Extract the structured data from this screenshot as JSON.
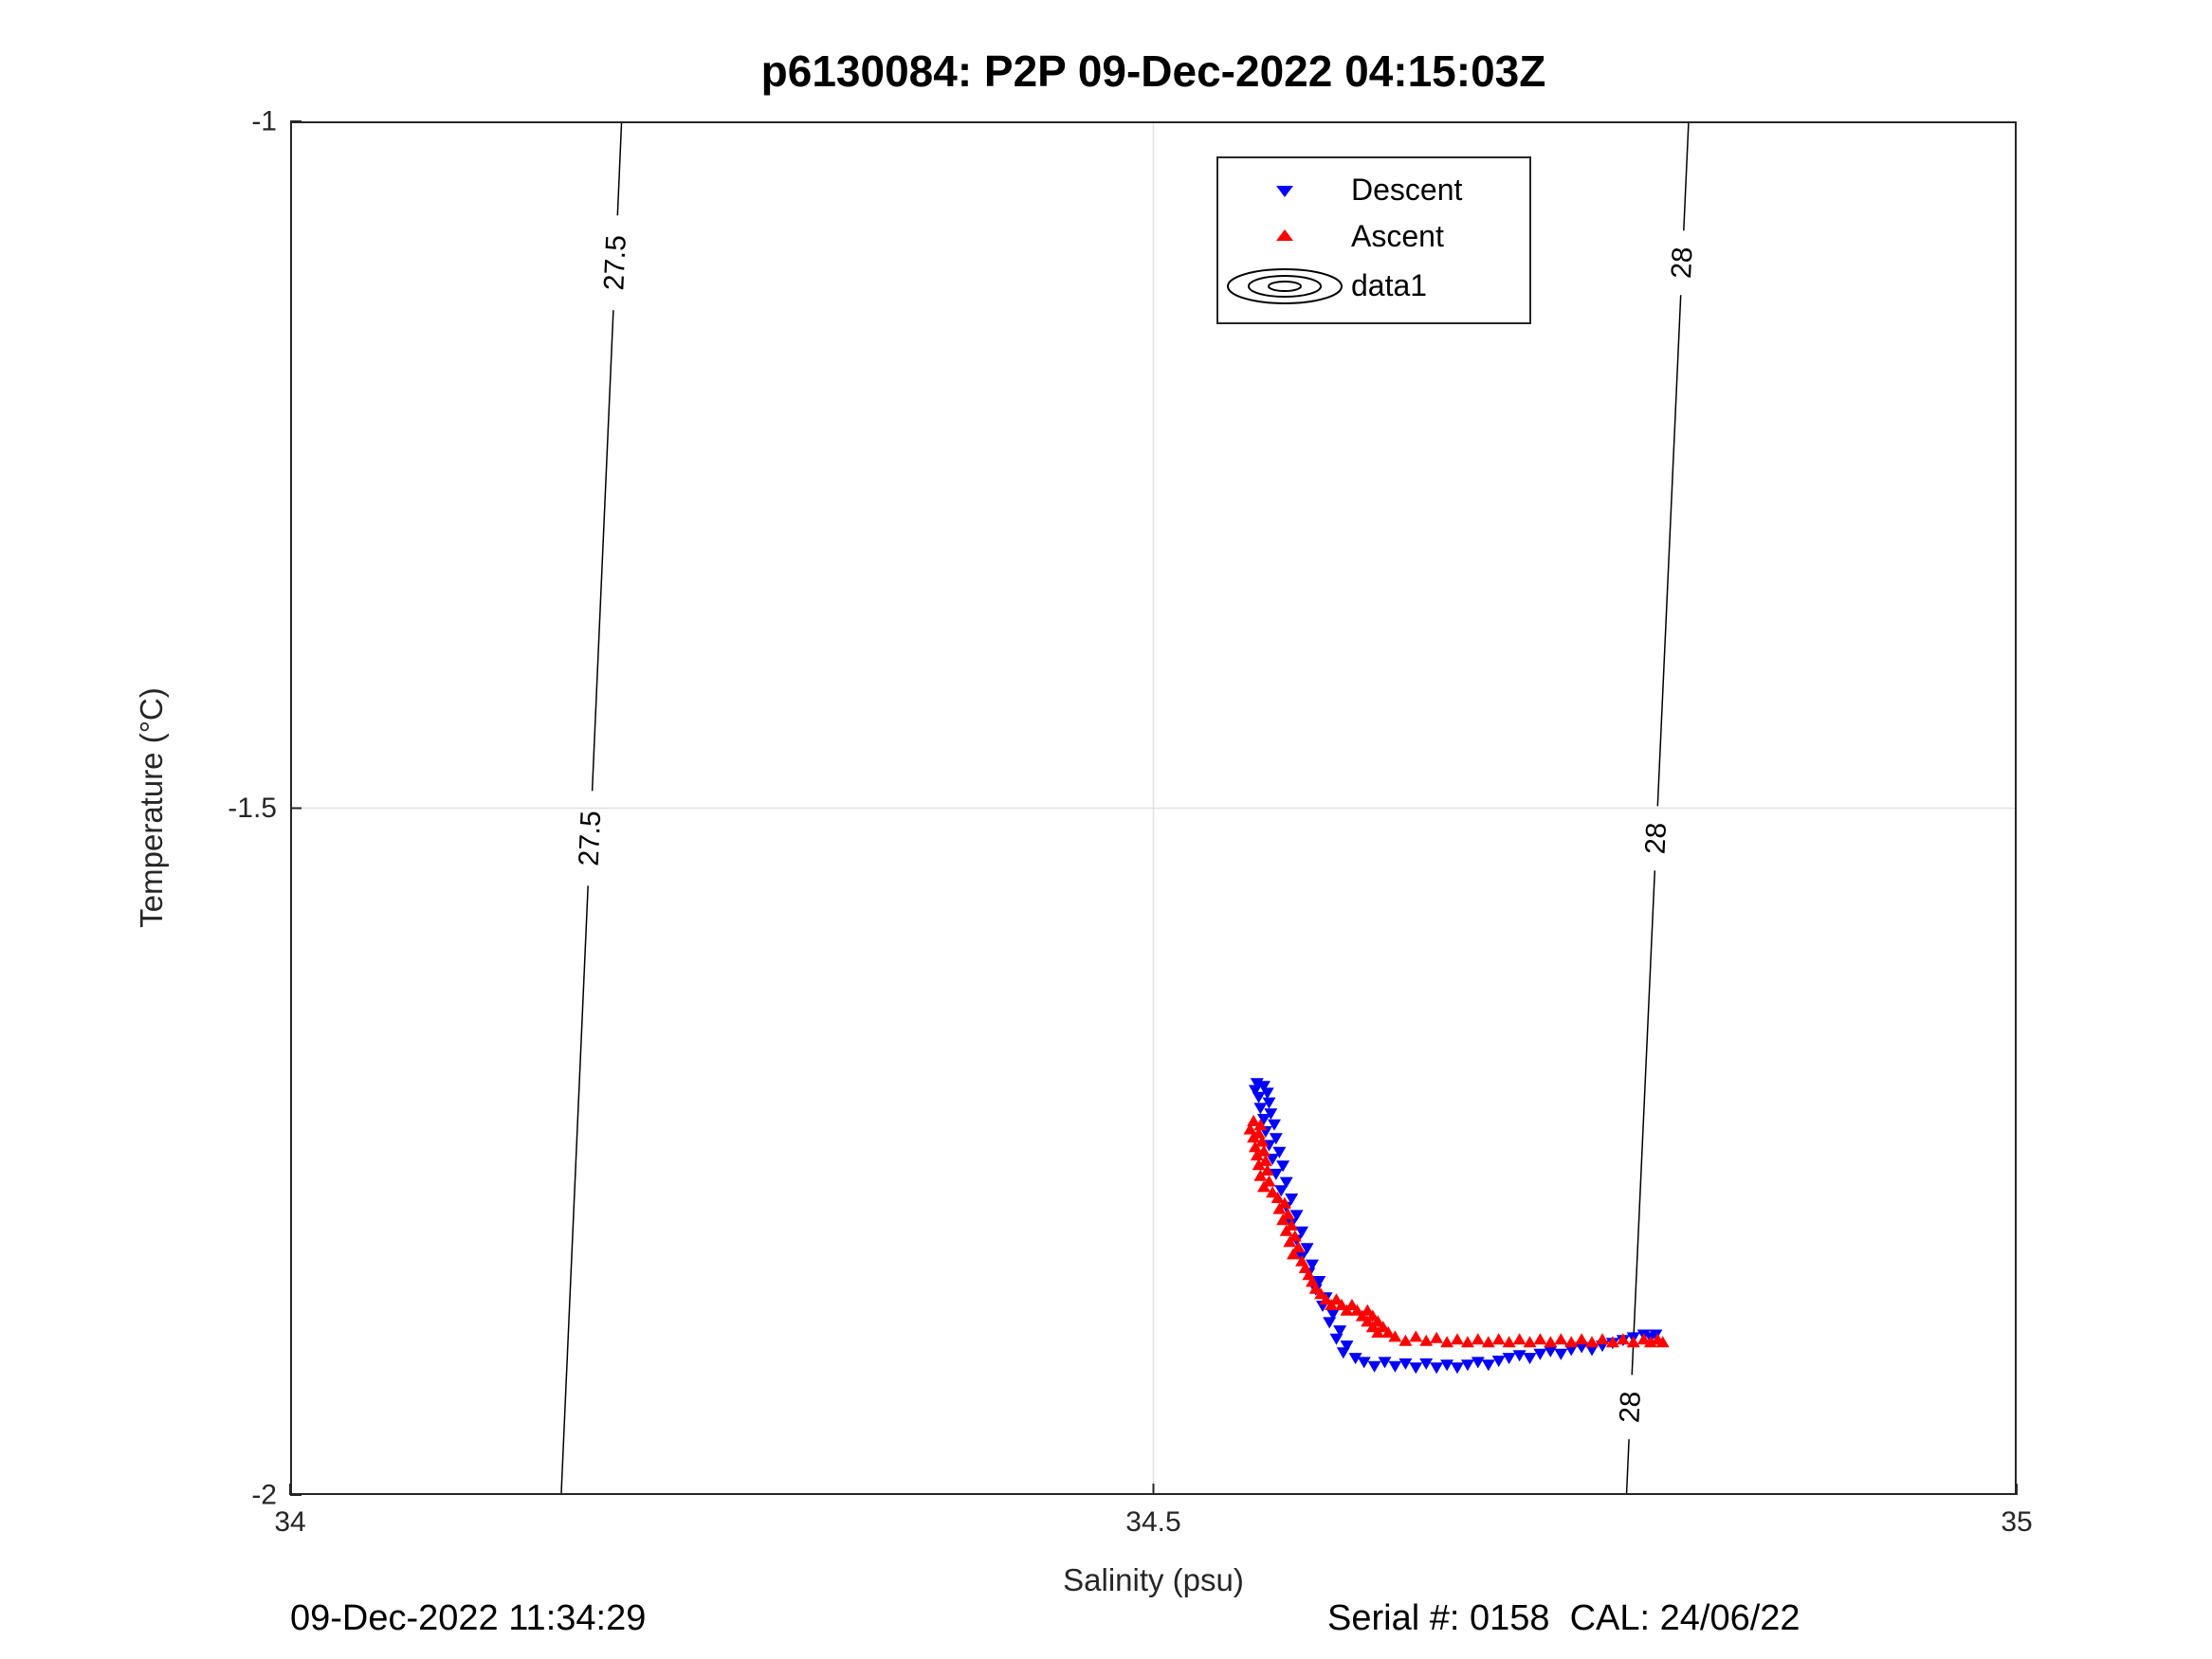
{
  "footer": {
    "left": "09-Dec-2022 11:34:29",
    "right": "Serial #: 0158  CAL: 24/06/22"
  },
  "chart_data": {
    "type": "scatter",
    "title": "p6130084: P2P 09-Dec-2022 04:15:03Z",
    "xlabel": "Salinity (psu)",
    "ylabel": "Temperature (°C)",
    "xlim": [
      34,
      35
    ],
    "ylim": [
      -2,
      -1
    ],
    "x_ticks": [
      {
        "value": 34,
        "label": "34"
      },
      {
        "value": 34.5,
        "label": "34.5"
      },
      {
        "value": 35,
        "label": "35"
      }
    ],
    "y_ticks": [
      {
        "value": -1,
        "label": "-1"
      },
      {
        "value": -1.5,
        "label": "-1.5"
      },
      {
        "value": -2,
        "label": "-2"
      }
    ],
    "grid": {
      "x": [
        34.5
      ],
      "y": [
        -1.5
      ],
      "color": "#e0e0e0",
      "on": true
    },
    "axis_color": "#262626",
    "contours": [
      {
        "label": "27.5",
        "x_at_top": 34.192,
        "x_at_bottom": 34.157,
        "label_positions": [
          -1.103,
          -1.522
        ],
        "color": "#000000"
      },
      {
        "label": "28",
        "x_at_top": 34.81,
        "x_at_bottom": 34.774,
        "label_positions": [
          -1.103,
          -1.522,
          -1.936
        ],
        "color": "#000000"
      }
    ],
    "legend": {
      "position": "top-center",
      "items": [
        {
          "label": "Descent",
          "marker": "triangle-down",
          "color": "#0000ff"
        },
        {
          "label": "Ascent",
          "marker": "triangle-up",
          "color": "#ff0000"
        },
        {
          "label": "data1",
          "marker": "contour-ellipses",
          "color": "#000000"
        }
      ]
    },
    "series": [
      {
        "name": "Descent",
        "marker": "triangle-down",
        "color": "#0000ff",
        "points": [
          [
            34.56,
            -1.7
          ],
          [
            34.564,
            -1.702
          ],
          [
            34.559,
            -1.705
          ],
          [
            34.566,
            -1.707
          ],
          [
            34.561,
            -1.71
          ],
          [
            34.567,
            -1.714
          ],
          [
            34.562,
            -1.718
          ],
          [
            34.568,
            -1.722
          ],
          [
            34.564,
            -1.726
          ],
          [
            34.57,
            -1.73
          ],
          [
            34.565,
            -1.735
          ],
          [
            34.571,
            -1.74
          ],
          [
            34.567,
            -1.745
          ],
          [
            34.573,
            -1.75
          ],
          [
            34.569,
            -1.755
          ],
          [
            34.575,
            -1.76
          ],
          [
            34.571,
            -1.766
          ],
          [
            34.577,
            -1.772
          ],
          [
            34.574,
            -1.778
          ],
          [
            34.58,
            -1.784
          ],
          [
            34.577,
            -1.79
          ],
          [
            34.583,
            -1.796
          ],
          [
            34.58,
            -1.802
          ],
          [
            34.586,
            -1.808
          ],
          [
            34.583,
            -1.814
          ],
          [
            34.589,
            -1.82
          ],
          [
            34.586,
            -1.826
          ],
          [
            34.592,
            -1.832
          ],
          [
            34.59,
            -1.838
          ],
          [
            34.596,
            -1.844
          ],
          [
            34.594,
            -1.85
          ],
          [
            34.6,
            -1.856
          ],
          [
            34.598,
            -1.862
          ],
          [
            34.604,
            -1.868
          ],
          [
            34.602,
            -1.874
          ],
          [
            34.608,
            -1.88
          ],
          [
            34.606,
            -1.886
          ],
          [
            34.612,
            -1.891
          ],
          [
            34.61,
            -1.896
          ],
          [
            34.617,
            -1.9
          ],
          [
            34.622,
            -1.903
          ],
          [
            34.628,
            -1.906
          ],
          [
            34.634,
            -1.903
          ],
          [
            34.64,
            -1.906
          ],
          [
            34.646,
            -1.904
          ],
          [
            34.652,
            -1.907
          ],
          [
            34.658,
            -1.904
          ],
          [
            34.664,
            -1.907
          ],
          [
            34.67,
            -1.905
          ],
          [
            34.676,
            -1.907
          ],
          [
            34.682,
            -1.905
          ],
          [
            34.688,
            -1.903
          ],
          [
            34.694,
            -1.905
          ],
          [
            34.7,
            -1.902
          ],
          [
            34.706,
            -1.9
          ],
          [
            34.712,
            -1.898
          ],
          [
            34.718,
            -1.9
          ],
          [
            34.724,
            -1.897
          ],
          [
            34.73,
            -1.895
          ],
          [
            34.736,
            -1.897
          ],
          [
            34.742,
            -1.894
          ],
          [
            34.748,
            -1.892
          ],
          [
            34.754,
            -1.894
          ],
          [
            34.76,
            -1.891
          ],
          [
            34.766,
            -1.889
          ],
          [
            34.772,
            -1.887
          ],
          [
            34.778,
            -1.885
          ],
          [
            34.784,
            -1.883
          ],
          [
            34.788,
            -1.885
          ],
          [
            34.791,
            -1.883
          ]
        ]
      },
      {
        "name": "Ascent",
        "marker": "triangle-up",
        "color": "#ff0000",
        "points": [
          [
            34.558,
            -1.728
          ],
          [
            34.562,
            -1.731
          ],
          [
            34.556,
            -1.734
          ],
          [
            34.561,
            -1.737
          ],
          [
            34.558,
            -1.74
          ],
          [
            34.563,
            -1.743
          ],
          [
            34.559,
            -1.747
          ],
          [
            34.564,
            -1.75
          ],
          [
            34.56,
            -1.753
          ],
          [
            34.565,
            -1.757
          ],
          [
            34.561,
            -1.76
          ],
          [
            34.566,
            -1.764
          ],
          [
            34.562,
            -1.768
          ],
          [
            34.567,
            -1.772
          ],
          [
            34.564,
            -1.776
          ],
          [
            34.569,
            -1.78
          ],
          [
            34.572,
            -1.784
          ],
          [
            34.576,
            -1.788
          ],
          [
            34.573,
            -1.792
          ],
          [
            34.578,
            -1.796
          ],
          [
            34.575,
            -1.8
          ],
          [
            34.58,
            -1.804
          ],
          [
            34.577,
            -1.808
          ],
          [
            34.582,
            -1.812
          ],
          [
            34.579,
            -1.816
          ],
          [
            34.584,
            -1.82
          ],
          [
            34.581,
            -1.825
          ],
          [
            34.586,
            -1.83
          ],
          [
            34.588,
            -1.835
          ],
          [
            34.59,
            -1.84
          ],
          [
            34.592,
            -1.845
          ],
          [
            34.594,
            -1.85
          ],
          [
            34.597,
            -1.854
          ],
          [
            34.6,
            -1.858
          ],
          [
            34.603,
            -1.862
          ],
          [
            34.606,
            -1.858
          ],
          [
            34.609,
            -1.862
          ],
          [
            34.612,
            -1.866
          ],
          [
            34.615,
            -1.862
          ],
          [
            34.618,
            -1.866
          ],
          [
            34.621,
            -1.87
          ],
          [
            34.624,
            -1.866
          ],
          [
            34.627,
            -1.87
          ],
          [
            34.624,
            -1.874
          ],
          [
            34.63,
            -1.874
          ],
          [
            34.627,
            -1.878
          ],
          [
            34.633,
            -1.878
          ],
          [
            34.63,
            -1.882
          ],
          [
            34.636,
            -1.882
          ],
          [
            34.64,
            -1.885
          ],
          [
            34.646,
            -1.888
          ],
          [
            34.652,
            -1.885
          ],
          [
            34.658,
            -1.888
          ],
          [
            34.664,
            -1.886
          ],
          [
            34.67,
            -1.889
          ],
          [
            34.676,
            -1.887
          ],
          [
            34.682,
            -1.889
          ],
          [
            34.688,
            -1.887
          ],
          [
            34.694,
            -1.889
          ],
          [
            34.7,
            -1.887
          ],
          [
            34.706,
            -1.889
          ],
          [
            34.712,
            -1.887
          ],
          [
            34.718,
            -1.889
          ],
          [
            34.724,
            -1.887
          ],
          [
            34.73,
            -1.889
          ],
          [
            34.736,
            -1.887
          ],
          [
            34.742,
            -1.889
          ],
          [
            34.748,
            -1.887
          ],
          [
            34.754,
            -1.889
          ],
          [
            34.76,
            -1.887
          ],
          [
            34.766,
            -1.889
          ],
          [
            34.772,
            -1.887
          ],
          [
            34.778,
            -1.889
          ],
          [
            34.784,
            -1.887
          ],
          [
            34.788,
            -1.889
          ],
          [
            34.792,
            -1.887
          ],
          [
            34.795,
            -1.889
          ]
        ]
      }
    ]
  }
}
